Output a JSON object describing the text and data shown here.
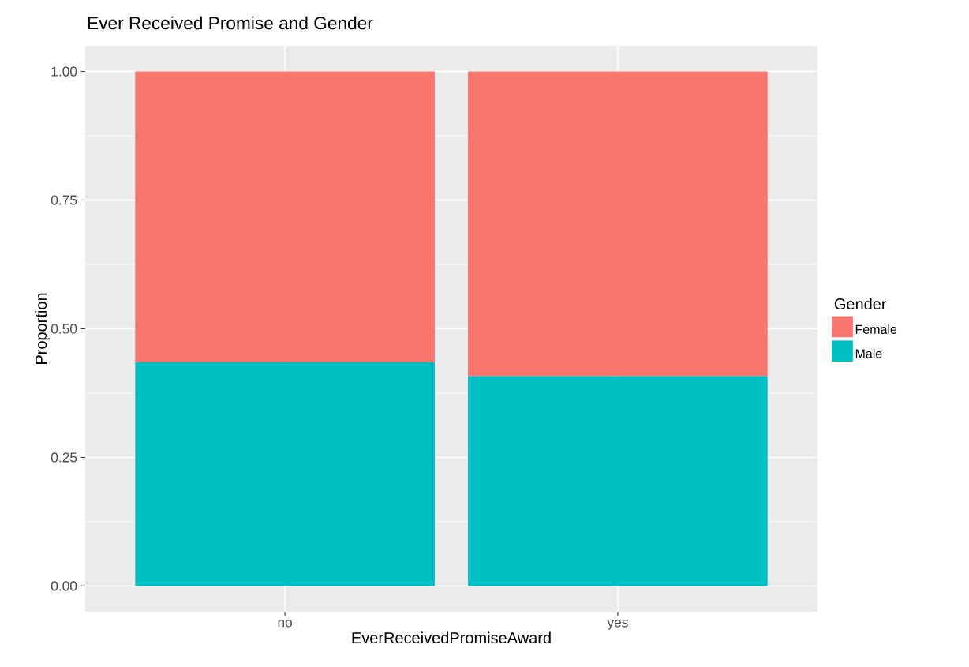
{
  "chart_data": {
    "type": "bar",
    "title": "Ever Received Promise and Gender",
    "xlabel": "EverReceivedPromiseAward",
    "ylabel": "Proportion",
    "legend_title": "Gender",
    "categories": [
      "no",
      "yes"
    ],
    "stacked": true,
    "series": [
      {
        "name": "Male",
        "color": "#00BFC4",
        "values": [
          0.435,
          0.408
        ]
      },
      {
        "name": "Female",
        "color": "#F8766D",
        "values": [
          0.565,
          0.592
        ]
      }
    ],
    "ylim": [
      -0.05,
      1.05
    ],
    "yticks": [
      {
        "value": 0,
        "label": "0.00"
      },
      {
        "value": 0.25,
        "label": "0.25"
      },
      {
        "value": 0.5,
        "label": "0.50"
      },
      {
        "value": 0.75,
        "label": "0.75"
      },
      {
        "value": 1,
        "label": "1.00"
      }
    ],
    "grid": true,
    "legend": "right"
  }
}
